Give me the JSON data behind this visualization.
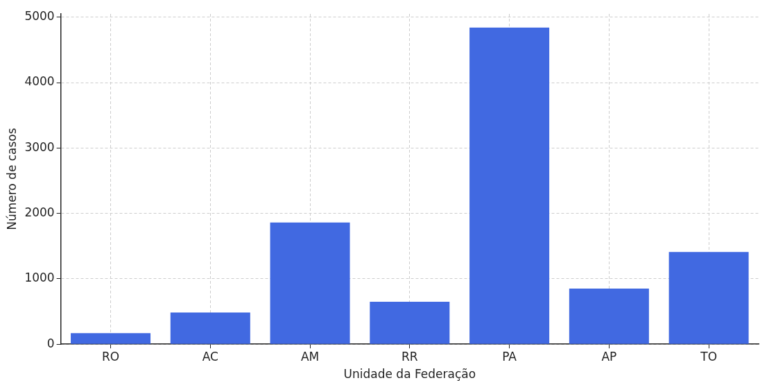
{
  "chart_data": {
    "type": "bar",
    "xlabel": "Unidade da Federação",
    "ylabel": "Número de casos",
    "categories": [
      "RO",
      "AC",
      "AM",
      "RR",
      "PA",
      "AP",
      "TO"
    ],
    "values": [
      170,
      485,
      1860,
      650,
      4840,
      850,
      1410
    ],
    "color": "#4169e1",
    "ylim": [
      0,
      5050
    ],
    "yticks": [
      0,
      1000,
      2000,
      3000,
      4000,
      5000
    ],
    "grid": true
  }
}
